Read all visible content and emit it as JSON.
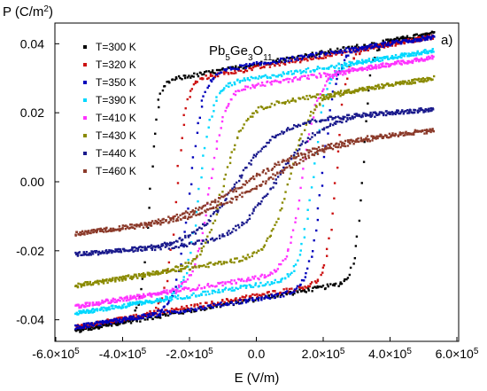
{
  "chart_data": {
    "type": "scatter",
    "title": "",
    "xlabel": "E (V/m)",
    "ylabel_main": "P (C/m",
    "ylabel_sup": "2",
    "ylabel_end": ")",
    "compound": {
      "a": "Pb",
      "a_sub": "5",
      "b": "Ge",
      "b_sub": "3",
      "c": "O",
      "c_sub": "11"
    },
    "panel_label": "a)",
    "xlim": [
      -600000,
      600000
    ],
    "ylim": [
      -0.046,
      0.046
    ],
    "x_ticks": [
      {
        "value": -600000,
        "mant": "-6.0×10",
        "exp": "5"
      },
      {
        "value": -400000,
        "mant": "-4.0×10",
        "exp": "5"
      },
      {
        "value": -200000,
        "mant": "-2.0×10",
        "exp": "5"
      },
      {
        "value": 0,
        "mant": "0.0",
        "exp": ""
      },
      {
        "value": 200000,
        "mant": "2.0×10",
        "exp": "5"
      },
      {
        "value": 400000,
        "mant": "4.0×10",
        "exp": "5"
      },
      {
        "value": 600000,
        "mant": "6.0×10",
        "exp": "5"
      }
    ],
    "y_ticks": [
      {
        "value": -0.04,
        "label": "-0.04"
      },
      {
        "value": -0.02,
        "label": "-0.02"
      },
      {
        "value": 0.0,
        "label": "0.00"
      },
      {
        "value": 0.02,
        "label": "0.02"
      },
      {
        "value": 0.04,
        "label": "0.04"
      }
    ],
    "grid": false,
    "legend_position": "top-left",
    "series": [
      {
        "name": "T=300 K",
        "color": "#000000",
        "Emin": -540000,
        "Emax": 530000,
        "Ec": 320000,
        "Ps": 0.034,
        "Pmax": 0.043,
        "w": 25000
      },
      {
        "name": "T=320 K",
        "color": "#cc1111",
        "Emin": -540000,
        "Emax": 530000,
        "Ec": 240000,
        "Ps": 0.033,
        "Pmax": 0.042,
        "w": 30000
      },
      {
        "name": "T=350 K",
        "color": "#0000bb",
        "Emin": -540000,
        "Emax": 530000,
        "Ec": 200000,
        "Ps": 0.034,
        "Pmax": 0.042,
        "w": 40000
      },
      {
        "name": "T=390 K",
        "color": "#00d8ff",
        "Emin": -540000,
        "Emax": 530000,
        "Ec": 170000,
        "Ps": 0.03,
        "Pmax": 0.038,
        "w": 40000
      },
      {
        "name": "T=410 K",
        "color": "#ff33ff",
        "Emin": -540000,
        "Emax": 530000,
        "Ec": 140000,
        "Ps": 0.028,
        "Pmax": 0.036,
        "w": 45000
      },
      {
        "name": "T=430 K",
        "color": "#8a8a00",
        "Emin": -540000,
        "Emax": 530000,
        "Ec": 100000,
        "Ps": 0.022,
        "Pmax": 0.03,
        "w": 60000
      },
      {
        "name": "T=440 K",
        "color": "#1a1a8c",
        "Emin": -540000,
        "Emax": 530000,
        "Ec": 60000,
        "Ps": 0.017,
        "Pmax": 0.021,
        "w": 120000
      },
      {
        "name": "T=460 K",
        "color": "#8b3a2a",
        "Emin": -540000,
        "Emax": 530000,
        "Ec": 30000,
        "Ps": 0.01,
        "Pmax": 0.015,
        "w": 200000
      }
    ]
  }
}
